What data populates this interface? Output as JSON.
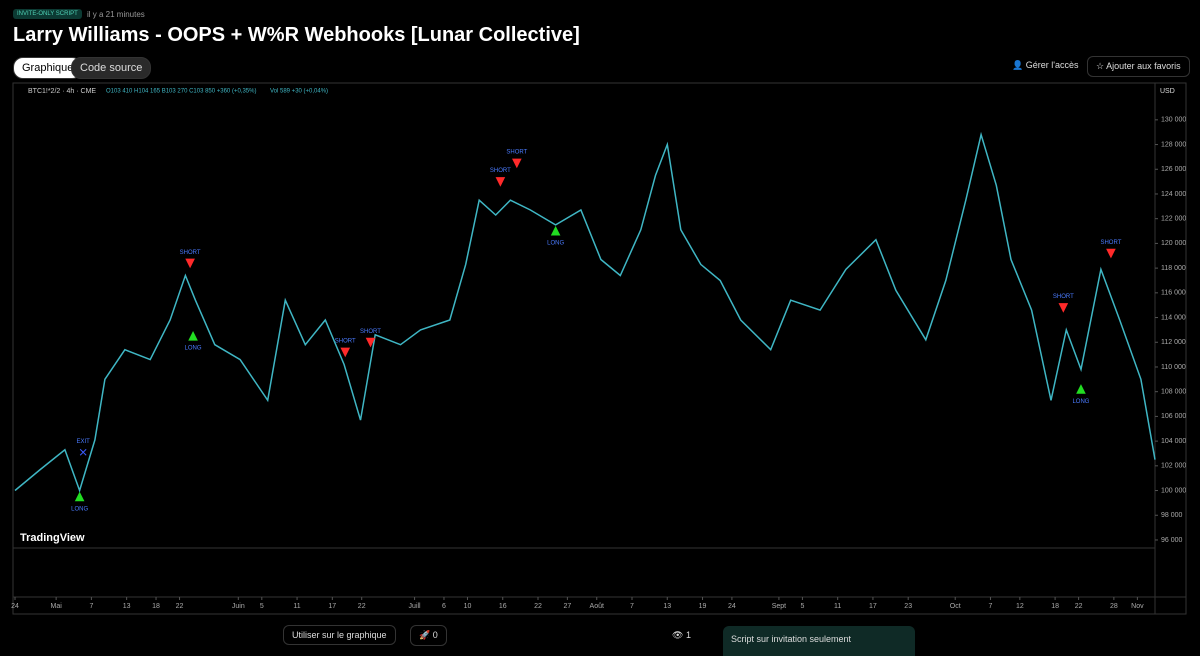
{
  "header": {
    "badge": "INVITE-ONLY SCRIPT",
    "time": "il y a 21 minutes",
    "title": "Larry Williams - OOPS + W%R Webhooks [Lunar Collective]",
    "tabs": [
      "Graphique",
      "Code source"
    ],
    "actions": [
      "Gérer l'accès",
      "Ajouter aux favoris"
    ]
  },
  "legend": {
    "symbol": "BTC1!*2/2 · 4h · CME",
    "ohlc": "O103 410 H104 165 B103 270 C103 850 +360 (+0,35%)",
    "volume": "Vol 589 +30 (+0,04%)",
    "currency": "USD",
    "brand": "TradingView"
  },
  "chart_data": {
    "type": "line",
    "color": "#3fb6c4",
    "x": [
      0,
      4.3,
      8.5,
      11,
      13.6,
      15.3,
      18.7,
      23,
      26.4,
      29,
      30.7,
      34,
      38.3,
      43,
      46,
      49.4,
      52.8,
      56,
      58.8,
      61.3,
      65.6,
      69,
      74,
      76.7,
      79,
      81.8,
      84.3,
      87.7,
      92,
      96.3,
      99.7,
      103,
      106.5,
      109,
      111,
      113.3,
      116.7,
      120,
      123.5,
      128.6,
      132,
      137,
      141.4,
      146.5,
      149.9,
      155,
      158.4,
      161.8,
      164.4,
      167,
      169.5,
      173,
      176.3,
      178.9,
      181.4,
      184.8,
      188,
      191.6,
      194
    ],
    "values": [
      100000,
      101700,
      103300,
      100000,
      104100,
      109000,
      111400,
      110600,
      113800,
      117400,
      115400,
      111800,
      110600,
      107300,
      115400,
      111800,
      113800,
      110200,
      105700,
      112600,
      111800,
      113000,
      113800,
      118300,
      123500,
      122300,
      123500,
      122700,
      121500,
      122700,
      118700,
      117400,
      121100,
      125500,
      128000,
      121100,
      118300,
      117000,
      113800,
      111400,
      115400,
      114600,
      117900,
      120300,
      116200,
      112200,
      117000,
      123500,
      128800,
      124700,
      118700,
      114600,
      107300,
      113000,
      109800,
      117900,
      113800,
      109000,
      102500
    ],
    "xlim": [
      0,
      194
    ],
    "ylim": [
      95350,
      132900
    ],
    "xticks": [
      {
        "value": 0,
        "label": "24"
      },
      {
        "value": 7,
        "label": "Mai"
      },
      {
        "value": 13,
        "label": "7"
      },
      {
        "value": 19,
        "label": "13"
      },
      {
        "value": 24,
        "label": "18"
      },
      {
        "value": 28,
        "label": "22"
      },
      {
        "value": 38,
        "label": "Juin"
      },
      {
        "value": 42,
        "label": "5"
      },
      {
        "value": 48,
        "label": "11"
      },
      {
        "value": 54,
        "label": "17"
      },
      {
        "value": 59,
        "label": "22"
      },
      {
        "value": 68,
        "label": "Juill"
      },
      {
        "value": 73,
        "label": "6"
      },
      {
        "value": 77,
        "label": "10"
      },
      {
        "value": 83,
        "label": "16"
      },
      {
        "value": 89,
        "label": "22"
      },
      {
        "value": 94,
        "label": "27"
      },
      {
        "value": 99,
        "label": "Août"
      },
      {
        "value": 105,
        "label": "7"
      },
      {
        "value": 111,
        "label": "13"
      },
      {
        "value": 117,
        "label": "19"
      },
      {
        "value": 122,
        "label": "24"
      },
      {
        "value": 130,
        "label": "Sept"
      },
      {
        "value": 134,
        "label": "5"
      },
      {
        "value": 140,
        "label": "11"
      },
      {
        "value": 146,
        "label": "17"
      },
      {
        "value": 152,
        "label": "23"
      },
      {
        "value": 160,
        "label": "Oct"
      },
      {
        "value": 166,
        "label": "7"
      },
      {
        "value": 171,
        "label": "12"
      },
      {
        "value": 177,
        "label": "18"
      },
      {
        "value": 181,
        "label": "22"
      },
      {
        "value": 187,
        "label": "28"
      },
      {
        "value": 191,
        "label": "Nov"
      }
    ],
    "yticks": [
      {
        "value": 96000,
        "label": "96 000"
      },
      {
        "value": 98000,
        "label": "98 000"
      },
      {
        "value": 100000,
        "label": "100 000"
      },
      {
        "value": 102000,
        "label": "102 000"
      },
      {
        "value": 104000,
        "label": "104 000"
      },
      {
        "value": 106000,
        "label": "106 000"
      },
      {
        "value": 108000,
        "label": "108 000"
      },
      {
        "value": 110000,
        "label": "110 000"
      },
      {
        "value": 112000,
        "label": "112 000"
      },
      {
        "value": 114000,
        "label": "114 000"
      },
      {
        "value": 116000,
        "label": "116 000"
      },
      {
        "value": 118000,
        "label": "118 000"
      },
      {
        "value": 120000,
        "label": "120 000"
      },
      {
        "value": 122000,
        "label": "122 000"
      },
      {
        "value": 124000,
        "label": "124 000"
      },
      {
        "value": 126000,
        "label": "126 000"
      },
      {
        "value": 128000,
        "label": "128 000"
      },
      {
        "value": 130000,
        "label": "130 000"
      }
    ],
    "signals": [
      {
        "label": "LONG",
        "x": 11,
        "y": 99500
      },
      {
        "label": "EXIT",
        "x": 11.6,
        "y": 103100
      },
      {
        "label": "SHORT",
        "x": 29.8,
        "y": 118400
      },
      {
        "label": "LONG",
        "x": 30.3,
        "y": 112500
      },
      {
        "label": "SHORT",
        "x": 56.2,
        "y": 111200
      },
      {
        "label": "SHORT",
        "x": 60.5,
        "y": 112000
      },
      {
        "label": "SHORT",
        "x": 82.6,
        "y": 125000
      },
      {
        "label": "SHORT",
        "x": 85.4,
        "y": 126500
      },
      {
        "label": "LONG",
        "x": 92,
        "y": 121000
      },
      {
        "label": "SHORT",
        "x": 178.4,
        "y": 114800
      },
      {
        "label": "LONG",
        "x": 181.4,
        "y": 108200
      },
      {
        "label": "SHORT",
        "x": 186.5,
        "y": 119200
      }
    ]
  },
  "footer": {
    "use": "Utiliser sur le graphique",
    "boosts": "0",
    "views": "1",
    "notice": "Script sur invitation seulement"
  }
}
